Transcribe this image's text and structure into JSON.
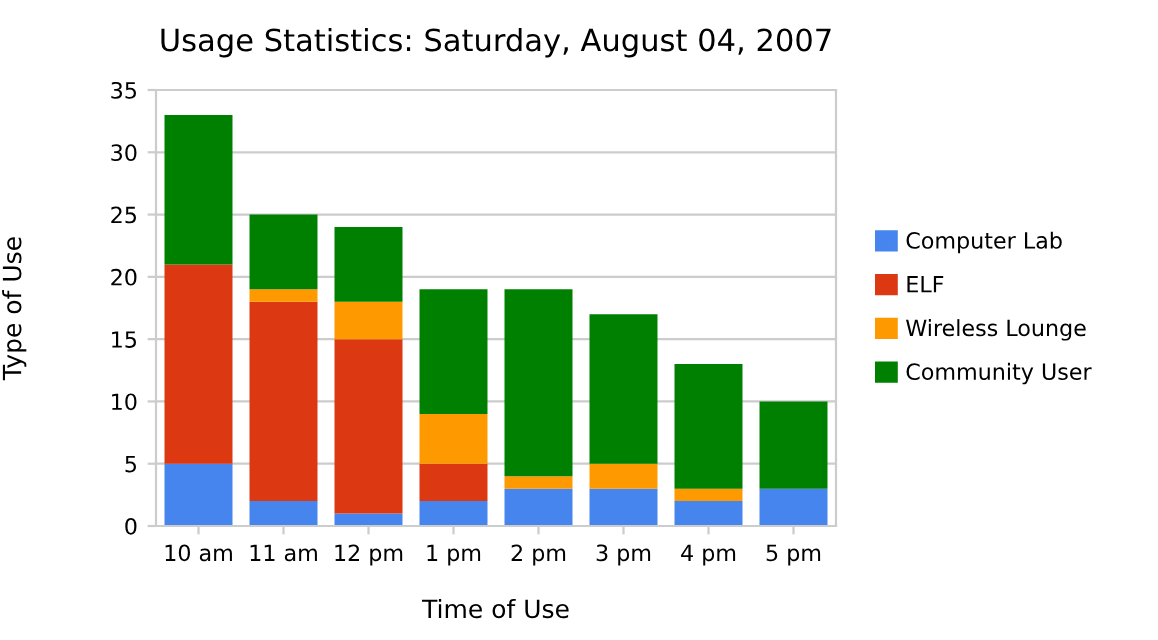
{
  "chart_data": {
    "type": "bar",
    "title": "Usage Statistics: Saturday, August 04, 2007",
    "xlabel": "Time of Use",
    "ylabel": "Type of Use",
    "categories": [
      "10 am",
      "11 am",
      "12 pm",
      "1 pm",
      "2 pm",
      "3 pm",
      "4 pm",
      "5 pm"
    ],
    "series": [
      {
        "name": "Computer Lab",
        "color": "#4684ee",
        "values": [
          5,
          2,
          1,
          2,
          3,
          3,
          2,
          3
        ]
      },
      {
        "name": "ELF",
        "color": "#dc3912",
        "values": [
          16,
          16,
          14,
          3,
          0,
          0,
          0,
          0
        ]
      },
      {
        "name": "Wireless Lounge",
        "color": "#ff9900",
        "values": [
          0,
          1,
          3,
          4,
          1,
          2,
          1,
          0
        ]
      },
      {
        "name": "Community User",
        "color": "#008000",
        "values": [
          12,
          6,
          6,
          10,
          15,
          12,
          10,
          7
        ]
      }
    ],
    "stacked": true,
    "ylim": [
      0,
      35
    ],
    "yticks": [
      0,
      5,
      10,
      15,
      20,
      25,
      30,
      35
    ],
    "grid": "y",
    "legend": "right"
  }
}
